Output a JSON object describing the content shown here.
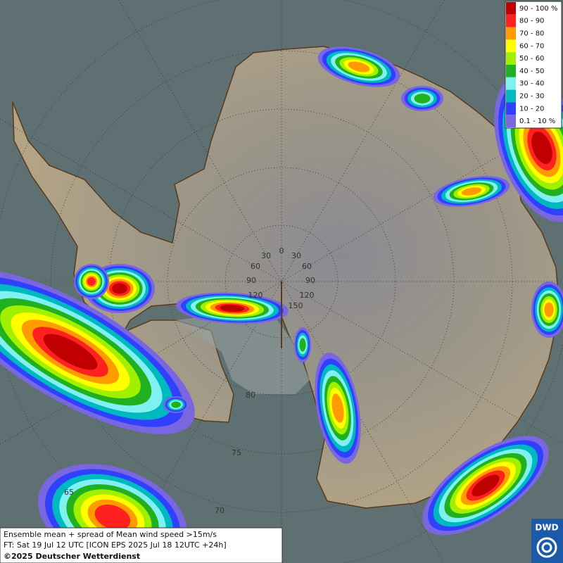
{
  "legend": {
    "items": [
      {
        "label": "90 - 100 %",
        "color": "#c00000"
      },
      {
        "label": "80 - 90",
        "color": "#ff2020"
      },
      {
        "label": "70 - 80",
        "color": "#ff9a00"
      },
      {
        "label": "60 - 70",
        "color": "#ffff00"
      },
      {
        "label": "50 - 60",
        "color": "#a0f000"
      },
      {
        "label": "40 - 50",
        "color": "#20b020"
      },
      {
        "label": "30 - 40",
        "color": "#80f0f0"
      },
      {
        "label": "20 - 30",
        "color": "#00b8c0"
      },
      {
        "label": "10 - 20",
        "color": "#3040ff"
      },
      {
        "label": "0.1 - 10 %",
        "color": "#7a66e0"
      }
    ]
  },
  "graticule": {
    "longitude_labels": [
      "0",
      "30",
      "30",
      "60",
      "60",
      "90",
      "90",
      "120",
      "120",
      "150"
    ],
    "latitude_labels": [
      "80",
      "75",
      "70",
      "65"
    ]
  },
  "caption": {
    "line1": "Ensemble mean + spread of Mean wind speed >15m/s",
    "line2": "FT: Sat 19 Jul 12 UTC [ICON EPS 2025 Jul 18 12UTC +24h]",
    "line3": "©2025 Deutscher Wetterdienst"
  },
  "logo": {
    "text": "DWD"
  }
}
